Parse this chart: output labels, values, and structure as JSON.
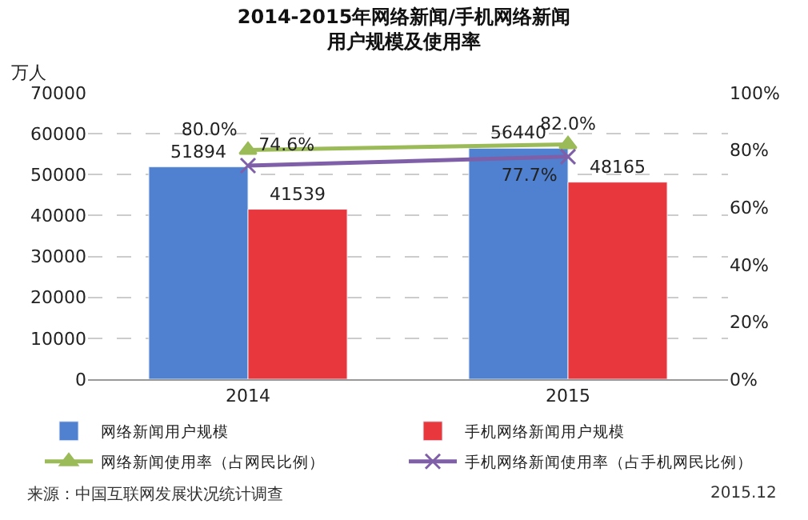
{
  "chart_data": {
    "type": "bar",
    "title": "2014-2015年网络新闻/手机网络新闻",
    "subtitle": "用户规模及使用率",
    "ylabel": "万人",
    "categories": [
      "2014",
      "2015"
    ],
    "series": [
      {
        "name": "网络新闻用户规模",
        "color": "#4f81d0",
        "values": [
          51894,
          56440
        ]
      },
      {
        "name": "手机网络新闻用户规模",
        "color": "#e8383d",
        "values": [
          41539,
          48165
        ]
      },
      {
        "name": "网络新闻使用率（占网民比例）",
        "type": "line",
        "axis": "y2",
        "color": "#9bbb59",
        "marker": "triangle",
        "values": [
          80.0,
          82.0
        ],
        "value_labels": [
          "80.0%",
          "82.0%"
        ]
      },
      {
        "name": "手机网络新闻使用率（占手机网民比例）",
        "type": "line",
        "axis": "y2",
        "color": "#7f5fa8",
        "marker": "cross",
        "values": [
          74.6,
          77.7
        ],
        "value_labels": [
          "74.6%",
          "77.7%"
        ]
      }
    ],
    "data_labels": true,
    "ylim": [
      0,
      70000
    ],
    "yticks": [
      0,
      10000,
      20000,
      30000,
      40000,
      50000,
      60000,
      70000
    ],
    "y2lim": [
      0,
      100
    ],
    "y2ticks": [
      {
        "value": 0,
        "label": "0%"
      },
      {
        "value": 20,
        "label": "20%"
      },
      {
        "value": 40,
        "label": "40%"
      },
      {
        "value": 60,
        "label": "60%"
      },
      {
        "value": 80,
        "label": "80%"
      },
      {
        "value": 100,
        "label": "100%"
      }
    ],
    "grid": "y",
    "legend": "bottom",
    "annotations": [
      "来源：中国互联网发展状况统计调查",
      "2015.12"
    ]
  }
}
